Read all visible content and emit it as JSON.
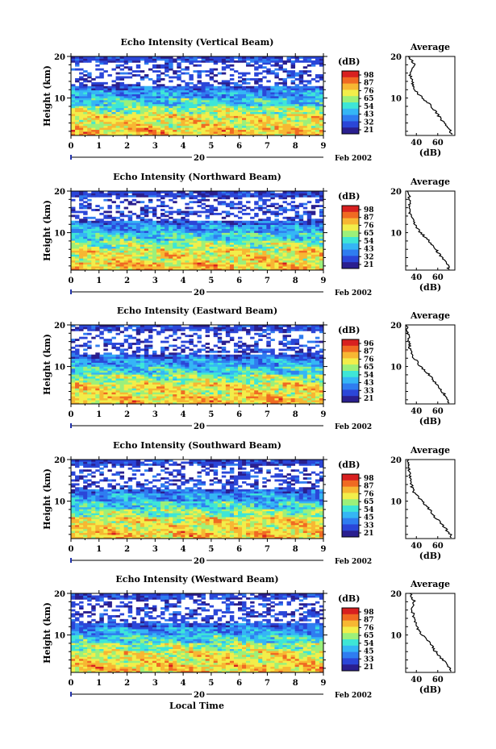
{
  "colorbar": {
    "unit": "(dB)",
    "stops": [
      "#2a1f8f",
      "#2b46d8",
      "#2f7df0",
      "#35b6f5",
      "#3ee6d6",
      "#9cf07a",
      "#f2ee4a",
      "#f7b733",
      "#f06a23",
      "#d82020"
    ]
  },
  "shared": {
    "x_ticks": [
      "0",
      "1",
      "2",
      "3",
      "4",
      "5",
      "6",
      "7",
      "8",
      "9"
    ],
    "y_ticks": [
      "20",
      "10"
    ],
    "date_day": "20",
    "date_month": "Feb 2002",
    "avg_title": "Average",
    "avg_xlabel": "(dB)",
    "ylabel": "Height (km)",
    "xlabel": "Local Time"
  },
  "panels": [
    {
      "title": "Echo Intensity (Vertical Beam)",
      "cbar_ticks": [
        "98",
        "87",
        "76",
        "65",
        "54",
        "43",
        "32",
        "21"
      ],
      "avg_ticks": [
        "40",
        "60"
      ]
    },
    {
      "title": "Echo Intensity (Northward Beam)",
      "cbar_ticks": [
        "98",
        "87",
        "76",
        "65",
        "54",
        "43",
        "32",
        "21"
      ],
      "avg_ticks": [
        "40",
        "60"
      ]
    },
    {
      "title": "Echo Intensity (Eastward Beam)",
      "cbar_ticks": [
        "96",
        "87",
        "76",
        "65",
        "54",
        "43",
        "33",
        "21"
      ],
      "avg_ticks": [
        "40",
        "60"
      ]
    },
    {
      "title": "Echo Intensity (Southward Beam)",
      "cbar_ticks": [
        "98",
        "87",
        "76",
        "65",
        "54",
        "45",
        "33",
        "21"
      ],
      "avg_ticks": [
        "40",
        "60"
      ]
    },
    {
      "title": "Echo Intensity (Westward Beam)",
      "cbar_ticks": [
        "98",
        "87",
        "76",
        "65",
        "54",
        "45",
        "33",
        "21"
      ],
      "avg_ticks": [
        "40",
        "60"
      ]
    }
  ],
  "chart_data": [
    {
      "type": "heatmap",
      "title": "Echo Intensity (Vertical Beam)",
      "xlabel": "Local Time",
      "ylabel": "Height (km)",
      "xlim": [
        0,
        9
      ],
      "ylim": [
        1,
        20
      ],
      "colorbar_range_db": [
        21,
        98
      ],
      "mean_profile_db": [
        [
          2,
          72
        ],
        [
          4,
          66
        ],
        [
          6,
          60
        ],
        [
          8,
          54
        ],
        [
          10,
          46
        ],
        [
          12,
          38
        ],
        [
          14,
          36
        ],
        [
          16,
          34
        ],
        [
          18,
          38
        ],
        [
          20,
          33
        ]
      ]
    },
    {
      "type": "heatmap",
      "title": "Echo Intensity (Northward Beam)",
      "xlabel": "Local Time",
      "ylabel": "Height (km)",
      "xlim": [
        0,
        9
      ],
      "ylim": [
        1,
        20
      ],
      "colorbar_range_db": [
        21,
        98
      ],
      "mean_profile_db": [
        [
          2,
          70
        ],
        [
          4,
          64
        ],
        [
          6,
          58
        ],
        [
          8,
          52
        ],
        [
          10,
          44
        ],
        [
          12,
          38
        ],
        [
          14,
          35
        ],
        [
          16,
          33
        ],
        [
          18,
          34
        ],
        [
          20,
          32
        ]
      ]
    },
    {
      "type": "heatmap",
      "title": "Echo Intensity (Eastward Beam)",
      "xlabel": "Local Time",
      "ylabel": "Height (km)",
      "xlim": [
        0,
        9
      ],
      "ylim": [
        1,
        20
      ],
      "colorbar_range_db": [
        21,
        96
      ],
      "mean_profile_db": [
        [
          2,
          70
        ],
        [
          4,
          64
        ],
        [
          6,
          58
        ],
        [
          8,
          52
        ],
        [
          10,
          44
        ],
        [
          12,
          38
        ],
        [
          14,
          34
        ],
        [
          16,
          33
        ],
        [
          18,
          32
        ],
        [
          20,
          31
        ]
      ]
    },
    {
      "type": "heatmap",
      "title": "Echo Intensity (Southward Beam)",
      "xlabel": "Local Time",
      "ylabel": "Height (km)",
      "xlim": [
        0,
        9
      ],
      "ylim": [
        1,
        20
      ],
      "colorbar_range_db": [
        21,
        98
      ],
      "mean_profile_db": [
        [
          2,
          72
        ],
        [
          4,
          65
        ],
        [
          6,
          58
        ],
        [
          8,
          52
        ],
        [
          10,
          45
        ],
        [
          12,
          38
        ],
        [
          14,
          35
        ],
        [
          16,
          34
        ],
        [
          18,
          33
        ],
        [
          20,
          32
        ]
      ]
    },
    {
      "type": "heatmap",
      "title": "Echo Intensity (Westward Beam)",
      "xlabel": "Local Time",
      "ylabel": "Height (km)",
      "xlim": [
        0,
        9
      ],
      "ylim": [
        1,
        20
      ],
      "colorbar_range_db": [
        21,
        98
      ],
      "mean_profile_db": [
        [
          2,
          72
        ],
        [
          4,
          65
        ],
        [
          6,
          58
        ],
        [
          8,
          53
        ],
        [
          10,
          45
        ],
        [
          12,
          40
        ],
        [
          14,
          38
        ],
        [
          16,
          36
        ],
        [
          18,
          38
        ],
        [
          20,
          34
        ]
      ]
    }
  ]
}
